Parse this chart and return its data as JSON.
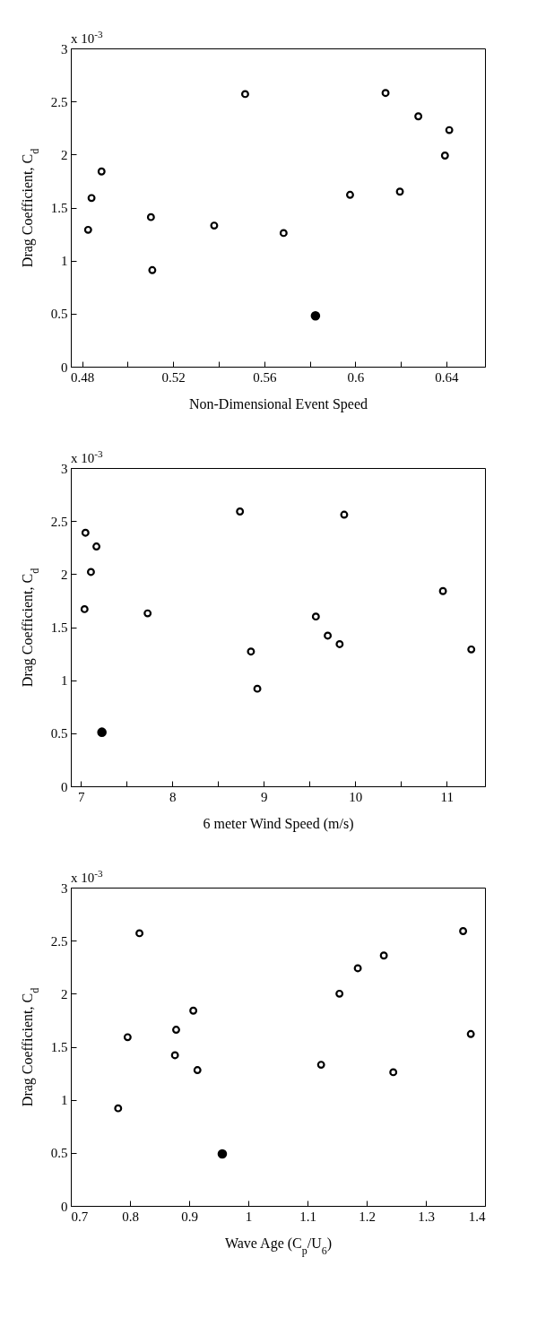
{
  "chart_data": [
    {
      "type": "scatter",
      "xlabel": "Non-Dimensional Event Speed",
      "ylabel": "Drag Coefficient, C$_{d}$",
      "annotations": [
        "x 10$^{-3}$"
      ],
      "xlim": [
        0.475,
        0.657
      ],
      "xticks": [
        0.48,
        {
          "value": 0.5,
          "label": null
        },
        0.52,
        {
          "value": 0.54,
          "label": null
        },
        0.56,
        {
          "value": 0.58,
          "label": null
        },
        0.6,
        {
          "value": 0.62,
          "label": null
        },
        0.64
      ],
      "ylim": [
        0,
        3
      ],
      "yticks": [
        0,
        0.5,
        1,
        1.5,
        2,
        2.5,
        3
      ],
      "grid": false,
      "marker": "circle",
      "series": [
        {
          "color": "#000000",
          "x": [
            0.4826,
            0.4841,
            0.4885,
            0.5102,
            0.5108,
            0.538,
            0.5516,
            0.5685,
            0.5977,
            0.6133,
            0.6196,
            0.6277,
            0.6394,
            0.6413
          ],
          "values": [
            1.29,
            1.59,
            1.84,
            1.41,
            0.91,
            1.33,
            2.57,
            1.26,
            1.62,
            2.58,
            1.65,
            2.36,
            1.99,
            2.23
          ]
        },
        {
          "color": "#000000",
          "x": [
            0.5825
          ],
          "values": [
            0.48
          ]
        }
      ]
    },
    {
      "type": "scatter",
      "xlabel": "6 meter Wind Speed (m/s)",
      "ylabel": "Drag Coefficient, C$_{d}$",
      "annotations": [
        "x 10$^{-3}$"
      ],
      "xlim": [
        6.89,
        11.42
      ],
      "xticks": [
        7,
        {
          "value": 7.5,
          "label": null
        },
        8,
        {
          "value": 8.5,
          "label": null
        },
        9,
        {
          "value": 9.5,
          "label": null
        },
        10,
        {
          "value": 10.5,
          "label": null
        },
        11
      ],
      "ylim": [
        0,
        3
      ],
      "yticks": [
        0,
        0.5,
        1,
        1.5,
        2,
        2.5,
        3
      ],
      "grid": false,
      "marker": "circle",
      "series": [
        {
          "color": "#000000",
          "x": [
            7.05,
            7.17,
            7.11,
            7.04,
            7.73,
            8.74,
            8.86,
            8.93,
            9.88,
            9.57,
            9.7,
            9.83,
            10.96,
            11.27
          ],
          "values": [
            2.39,
            2.26,
            2.02,
            1.67,
            1.63,
            2.59,
            1.27,
            0.92,
            2.56,
            1.6,
            1.42,
            1.34,
            1.84,
            1.29
          ]
        },
        {
          "color": "#000000",
          "x": [
            7.23
          ],
          "values": [
            0.51
          ]
        }
      ]
    },
    {
      "type": "scatter",
      "xlabel": "Wave Age (C$_{p}$/U$_{6}$)",
      "ylabel": "Drag Coefficient, C$_{d}$",
      "annotations": [
        "x 10$^{-3}$"
      ],
      "xlim": [
        0.7,
        1.4
      ],
      "xticks": [
        0.7,
        0.8,
        0.9,
        1,
        1.1,
        1.2,
        1.3,
        1.4
      ],
      "ylim": [
        0,
        3
      ],
      "yticks": [
        0,
        0.5,
        1,
        1.5,
        2,
        2.5,
        3
      ],
      "grid": false,
      "marker": "circle",
      "series": [
        {
          "color": "#000000",
          "x": [
            0.78,
            0.796,
            0.816,
            0.876,
            0.878,
            0.907,
            0.914,
            1.123,
            1.154,
            1.185,
            1.229,
            1.245,
            1.363,
            1.376
          ],
          "values": [
            0.92,
            1.59,
            2.57,
            1.42,
            1.66,
            1.84,
            1.28,
            1.33,
            2.0,
            2.24,
            2.36,
            1.26,
            2.59,
            1.62
          ]
        },
        {
          "color": "#000000",
          "x": [
            0.956
          ],
          "values": [
            0.49
          ]
        }
      ]
    }
  ]
}
